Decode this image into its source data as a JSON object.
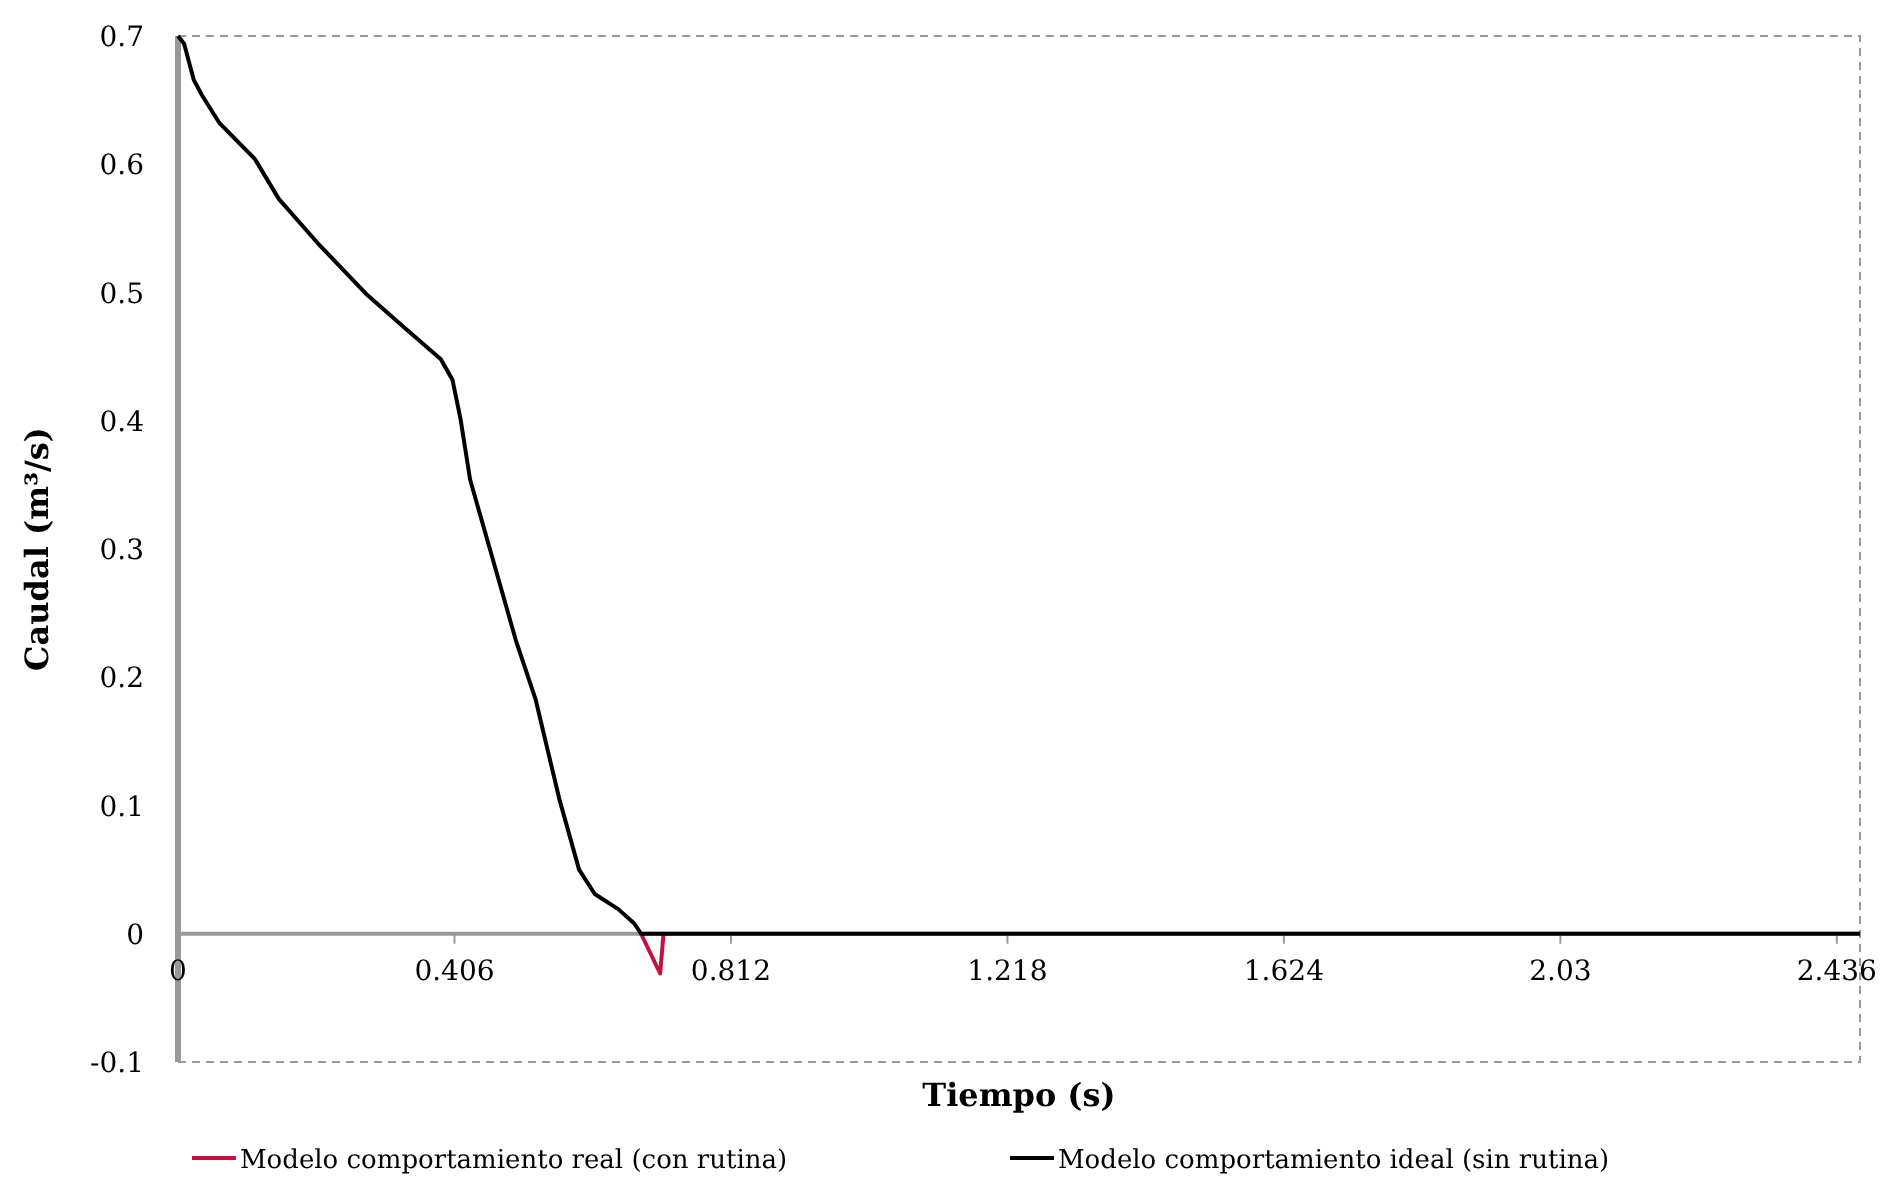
{
  "chart_data": {
    "type": "line",
    "xlabel": "Tiempo (s)",
    "ylabel": "Caudal (m³/s)",
    "xlim": [
      0,
      2.47
    ],
    "xticks": [
      0,
      0.406,
      0.812,
      1.218,
      1.624,
      2.03,
      2.436
    ],
    "ylim": [
      -0.1,
      0.7
    ],
    "yticks": [
      -0.1,
      0,
      0.1,
      0.2,
      0.3,
      0.4,
      0.5,
      0.6,
      0.7
    ],
    "grid": false,
    "legend": "bottom",
    "marker": "none",
    "line_style": "solid",
    "series": [
      {
        "name": "Modelo comportamiento real (con rutina)",
        "color": "#c0143c",
        "x": [
          0.68,
          0.708,
          0.713
        ],
        "values": [
          0,
          -0.031,
          0
        ]
      },
      {
        "name": "Modelo comportamiento ideal (sin rutina)",
        "color": "#000000",
        "x": [
          0,
          0.009,
          0.023,
          0.035,
          0.061,
          0.113,
          0.148,
          0.206,
          0.278,
          0.336,
          0.386,
          0.403,
          0.415,
          0.429,
          0.458,
          0.496,
          0.525,
          0.56,
          0.589,
          0.612,
          0.647,
          0.67,
          0.68,
          2.47
        ],
        "values": [
          0.7,
          0.694,
          0.666,
          0.654,
          0.632,
          0.604,
          0.573,
          0.538,
          0.498,
          0.471,
          0.448,
          0.432,
          0.401,
          0.354,
          0.3,
          0.229,
          0.183,
          0.105,
          0.05,
          0.031,
          0.019,
          0.008,
          0,
          0
        ]
      }
    ]
  }
}
